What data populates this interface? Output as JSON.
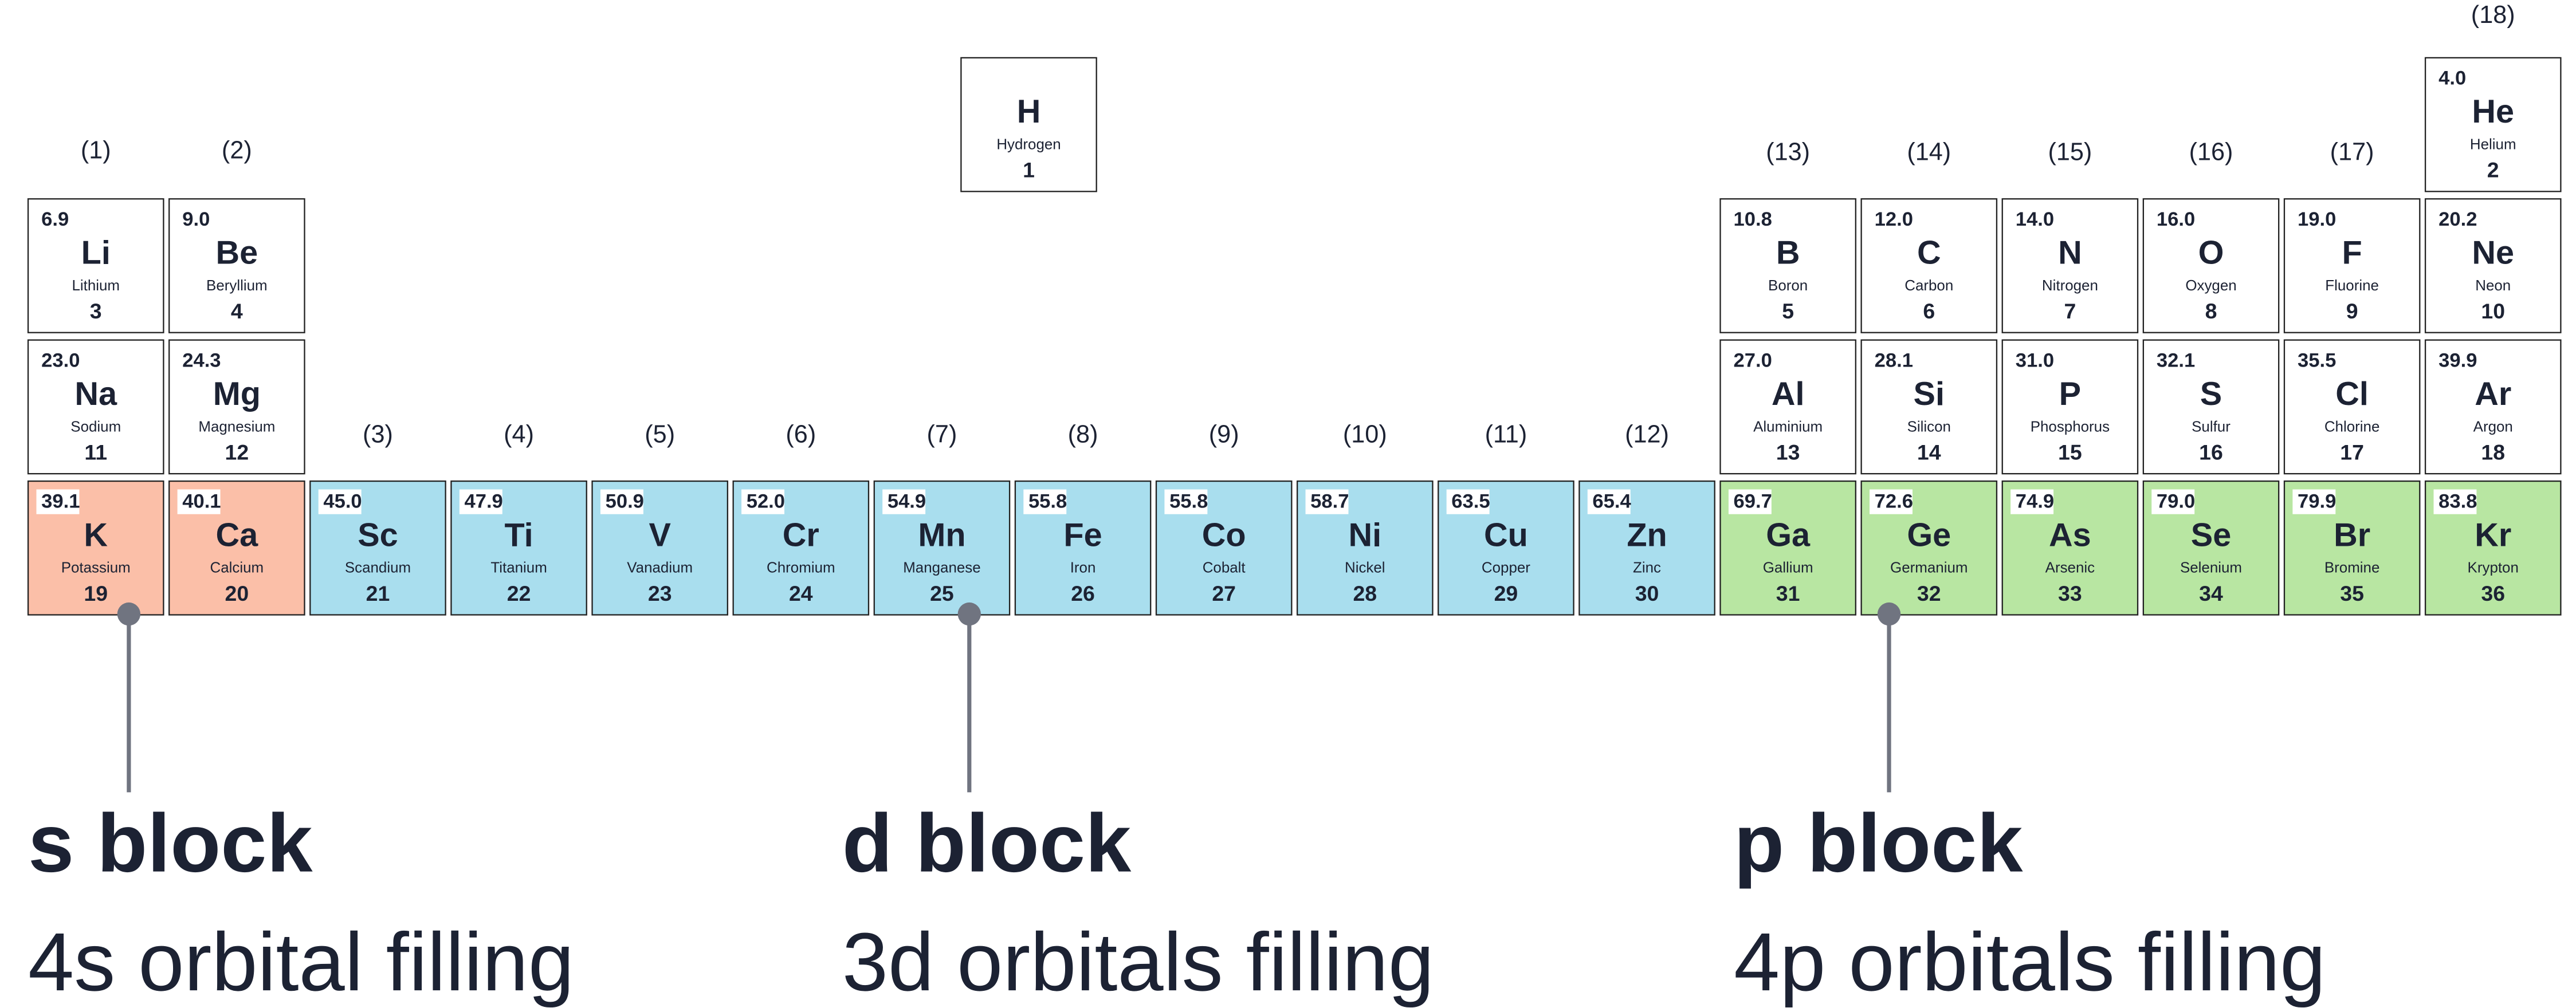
{
  "groups": [
    "(1)",
    "(2)",
    "(3)",
    "(4)",
    "(5)",
    "(6)",
    "(7)",
    "(8)",
    "(9)",
    "(10)",
    "(11)",
    "(12)",
    "(13)",
    "(14)",
    "(15)",
    "(16)",
    "(17)",
    "(18)"
  ],
  "elements": [
    {
      "symbol": "H",
      "name": "Hydrogen",
      "number": 1
    },
    {
      "mass": "4.0",
      "symbol": "He",
      "name": "Helium",
      "number": 2
    },
    {
      "mass": "6.9",
      "symbol": "Li",
      "name": "Lithium",
      "number": 3
    },
    {
      "mass": "9.0",
      "symbol": "Be",
      "name": "Beryllium",
      "number": 4
    },
    {
      "mass": "10.8",
      "symbol": "B",
      "name": "Boron",
      "number": 5
    },
    {
      "mass": "12.0",
      "symbol": "C",
      "name": "Carbon",
      "number": 6
    },
    {
      "mass": "14.0",
      "symbol": "N",
      "name": "Nitrogen",
      "number": 7
    },
    {
      "mass": "16.0",
      "symbol": "O",
      "name": "Oxygen",
      "number": 8
    },
    {
      "mass": "19.0",
      "symbol": "F",
      "name": "Fluorine",
      "number": 9
    },
    {
      "mass": "20.2",
      "symbol": "Ne",
      "name": "Neon",
      "number": 10
    },
    {
      "mass": "23.0",
      "symbol": "Na",
      "name": "Sodium",
      "number": 11
    },
    {
      "mass": "24.3",
      "symbol": "Mg",
      "name": "Magnesium",
      "number": 12
    },
    {
      "mass": "27.0",
      "symbol": "Al",
      "name": "Aluminium",
      "number": 13
    },
    {
      "mass": "28.1",
      "symbol": "Si",
      "name": "Silicon",
      "number": 14
    },
    {
      "mass": "31.0",
      "symbol": "P",
      "name": "Phosphorus",
      "number": 15
    },
    {
      "mass": "32.1",
      "symbol": "S",
      "name": "Sulfur",
      "number": 16
    },
    {
      "mass": "35.5",
      "symbol": "Cl",
      "name": "Chlorine",
      "number": 17
    },
    {
      "mass": "39.9",
      "symbol": "Ar",
      "name": "Argon",
      "number": 18
    },
    {
      "mass": "39.1",
      "symbol": "K",
      "name": "Potassium",
      "number": 19
    },
    {
      "mass": "40.1",
      "symbol": "Ca",
      "name": "Calcium",
      "number": 20
    },
    {
      "mass": "45.0",
      "symbol": "Sc",
      "name": "Scandium",
      "number": 21
    },
    {
      "mass": "47.9",
      "symbol": "Ti",
      "name": "Titanium",
      "number": 22
    },
    {
      "mass": "50.9",
      "symbol": "V",
      "name": "Vanadium",
      "number": 23
    },
    {
      "mass": "52.0",
      "symbol": "Cr",
      "name": "Chromium",
      "number": 24
    },
    {
      "mass": "54.9",
      "symbol": "Mn",
      "name": "Manganese",
      "number": 25
    },
    {
      "mass": "55.8",
      "symbol": "Fe",
      "name": "Iron",
      "number": 26
    },
    {
      "mass": "55.8",
      "symbol": "Co",
      "name": "Cobalt",
      "number": 27
    },
    {
      "mass": "58.7",
      "symbol": "Ni",
      "name": "Nickel",
      "number": 28
    },
    {
      "mass": "63.5",
      "symbol": "Cu",
      "name": "Copper",
      "number": 29
    },
    {
      "mass": "65.4",
      "symbol": "Zn",
      "name": "Zinc",
      "number": 30
    },
    {
      "mass": "69.7",
      "symbol": "Ga",
      "name": "Gallium",
      "number": 31
    },
    {
      "mass": "72.6",
      "symbol": "Ge",
      "name": "Germanium",
      "number": 32
    },
    {
      "mass": "74.9",
      "symbol": "As",
      "name": "Arsenic",
      "number": 33
    },
    {
      "mass": "79.0",
      "symbol": "Se",
      "name": "Selenium",
      "number": 34
    },
    {
      "mass": "79.9",
      "symbol": "Br",
      "name": "Bromine",
      "number": 35
    },
    {
      "mass": "83.8",
      "symbol": "Kr",
      "name": "Krypton",
      "number": 36
    }
  ],
  "blocks": [
    {
      "title": "s block",
      "subtitle": "4s orbital filling"
    },
    {
      "title": "d block",
      "subtitle": "3d orbitals filling"
    },
    {
      "title": "p block",
      "subtitle": "4p orbitals filling"
    }
  ]
}
